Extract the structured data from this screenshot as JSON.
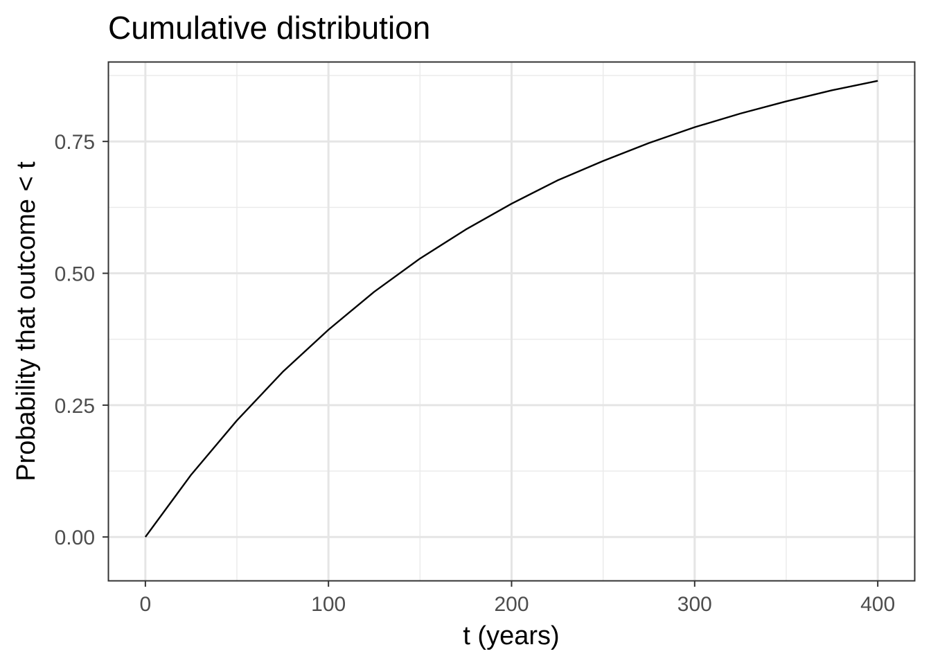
{
  "chart_data": {
    "type": "line",
    "title": "Cumulative distribution",
    "xlabel": "t (years)",
    "ylabel": "Probability that outcome < t",
    "xlim": [
      -20,
      420
    ],
    "ylim": [
      -0.0825,
      0.9
    ],
    "x_ticks": [
      0,
      100,
      200,
      300,
      400
    ],
    "x_tick_labels": [
      "0",
      "100",
      "200",
      "300",
      "400"
    ],
    "y_ticks": [
      0,
      0.25,
      0.5,
      0.75
    ],
    "y_tick_labels": [
      "0.00",
      "0.25",
      "0.50",
      "0.75"
    ],
    "grid": true,
    "series": [
      {
        "color": "#000000",
        "x": [
          0,
          25,
          50,
          75,
          100,
          125,
          150,
          175,
          200,
          225,
          250,
          275,
          300,
          325,
          350,
          375,
          400
        ],
        "y": [
          0.0,
          0.118,
          0.221,
          0.313,
          0.393,
          0.465,
          0.528,
          0.583,
          0.632,
          0.676,
          0.713,
          0.747,
          0.777,
          0.803,
          0.826,
          0.847,
          0.865
        ]
      }
    ]
  }
}
